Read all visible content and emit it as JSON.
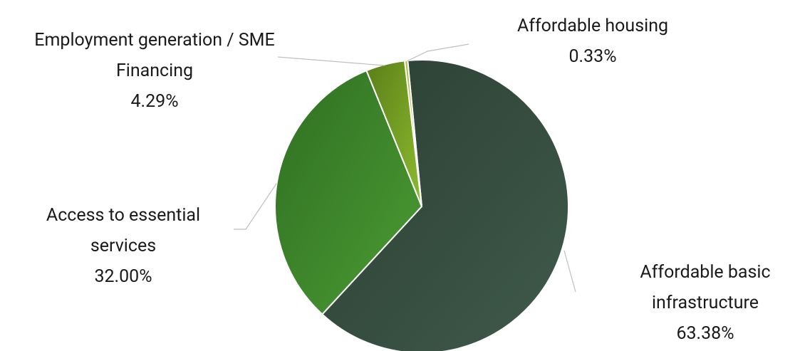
{
  "chart_data": {
    "type": "pie",
    "categories": [
      "Affordable basic infrastructure",
      "Access to essential services",
      "Employment generation / SME Financing",
      "Affordable housing"
    ],
    "values": [
      63.38,
      32.0,
      4.29,
      0.33
    ],
    "value_labels": [
      "63.38%",
      "32.00%",
      "4.29%",
      "0.33%"
    ],
    "colors": [
      "#2f4a3b",
      "#3b8a2c",
      "#6f9e1f",
      "#b8cc4c"
    ]
  }
}
